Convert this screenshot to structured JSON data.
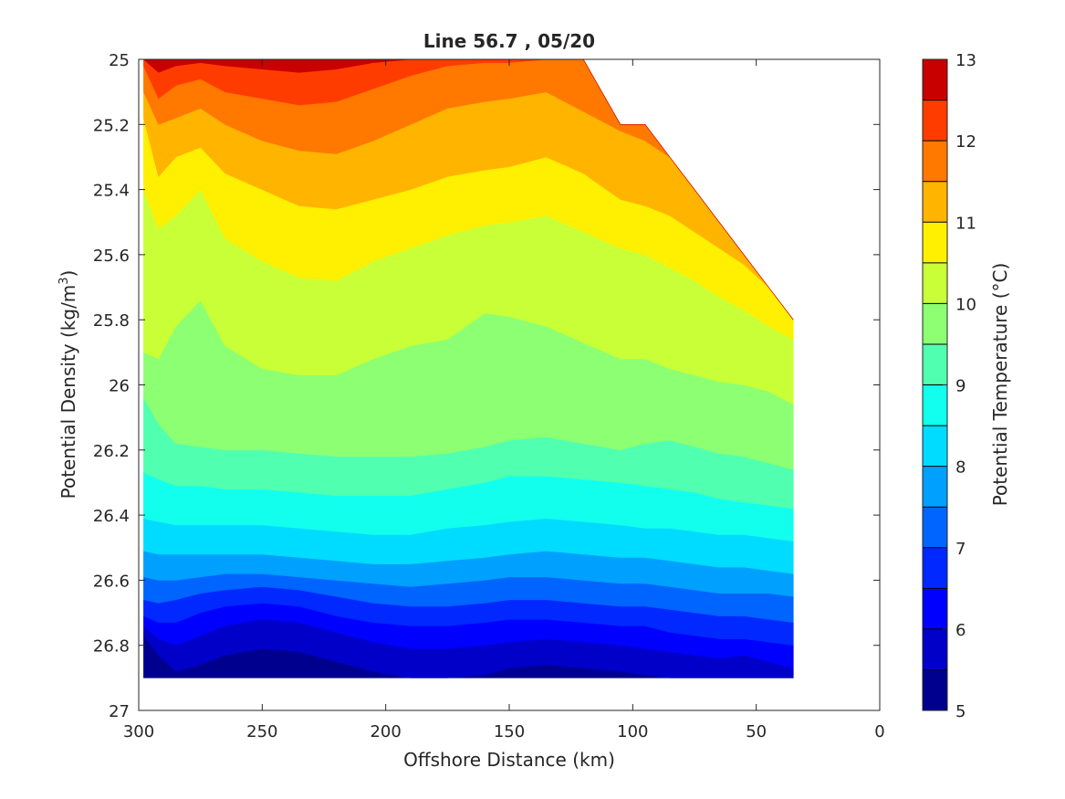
{
  "chart_data": {
    "type": "heatmap",
    "title": "Line 56.7 , 05/20",
    "xlabel": "Offshore Distance (km)",
    "ylabel": "Potential Density (kg/m",
    "ylabel_sup": "3",
    "ylabel_close": ")",
    "colorbar_label": "Potential Temperature (°C)",
    "xlim": [
      300,
      0
    ],
    "x_reversed": true,
    "ylim": [
      25,
      27
    ],
    "y_reversed": true,
    "x_ticks": [
      300,
      250,
      200,
      150,
      100,
      50,
      0
    ],
    "x_tick_labels": [
      "300",
      "250",
      "200",
      "150",
      "100",
      "50",
      "0"
    ],
    "y_ticks": [
      25,
      25.2,
      25.4,
      25.6,
      25.8,
      26,
      26.2,
      26.4,
      26.6,
      26.8,
      27
    ],
    "y_tick_labels": [
      "25",
      "25.2",
      "25.4",
      "25.6",
      "25.8",
      "26",
      "26.2",
      "26.4",
      "26.6",
      "26.8",
      "27"
    ],
    "colorbar_ticks": [
      5,
      6,
      7,
      8,
      9,
      10,
      11,
      12,
      13
    ],
    "colorbar_tick_labels": [
      "5",
      "6",
      "7",
      "8",
      "9",
      "10",
      "11",
      "12",
      "13"
    ],
    "contour_levels": [
      5,
      5.5,
      6,
      6.5,
      7,
      7.5,
      8,
      8.5,
      9,
      9.5,
      10,
      10.5,
      11,
      11.5,
      12,
      12.5,
      13
    ],
    "colormap": [
      "#00008f",
      "#0000c8",
      "#0000ff",
      "#0028ff",
      "#0064ff",
      "#00a0ff",
      "#00dcff",
      "#12ffed",
      "#50ffaf",
      "#8cff73",
      "#c8ff37",
      "#ffef00",
      "#ffb400",
      "#ff7800",
      "#ff3c00",
      "#c80000"
    ],
    "contour_fill": {
      "x": [
        298,
        292,
        285,
        275,
        265,
        250,
        235,
        220,
        205,
        190,
        175,
        160,
        150,
        135,
        120,
        105,
        95,
        85,
        75,
        65,
        55,
        45,
        35
      ],
      "depth_max": [
        26.9,
        26.9,
        26.9,
        26.9,
        26.9,
        26.9,
        26.9,
        26.9,
        26.9,
        26.9,
        26.9,
        26.9,
        26.9,
        26.9,
        26.9,
        26.9,
        26.9,
        26.9,
        26.9,
        26.9,
        26.9,
        26.9,
        26.9
      ],
      "surface_min": [
        25,
        25,
        25,
        25,
        25,
        25,
        25,
        25,
        25,
        25,
        25,
        25,
        25,
        25,
        25.0,
        25.2,
        25.2,
        25.3,
        25.4,
        25.5,
        25.6,
        25.7,
        25.8
      ],
      "isotherms": [
        {
          "level": 5.5,
          "y": [
            26.77,
            26.83,
            26.88,
            26.86,
            26.83,
            26.81,
            26.82,
            26.85,
            26.88,
            26.9,
            26.9,
            26.89,
            26.87,
            26.86,
            26.87,
            26.88,
            26.89,
            26.9,
            26.9,
            26.9,
            26.9,
            26.9,
            26.9
          ]
        },
        {
          "level": 6.0,
          "y": [
            26.74,
            26.78,
            26.8,
            26.77,
            26.74,
            26.72,
            26.73,
            26.76,
            26.79,
            26.81,
            26.81,
            26.8,
            26.79,
            26.78,
            26.79,
            26.8,
            26.81,
            26.82,
            26.83,
            26.84,
            26.83,
            26.85,
            26.87
          ]
        },
        {
          "level": 6.5,
          "y": [
            26.71,
            26.73,
            26.73,
            26.7,
            26.68,
            26.67,
            26.68,
            26.71,
            26.73,
            26.74,
            26.74,
            26.73,
            26.72,
            26.72,
            26.73,
            26.74,
            26.74,
            26.76,
            26.77,
            26.78,
            26.78,
            26.79,
            26.8
          ]
        },
        {
          "level": 7.0,
          "y": [
            26.66,
            26.67,
            26.66,
            26.64,
            26.63,
            26.62,
            26.63,
            26.65,
            26.67,
            26.68,
            26.68,
            26.67,
            26.66,
            26.66,
            26.67,
            26.68,
            26.68,
            26.69,
            26.7,
            26.71,
            26.71,
            26.72,
            26.73
          ]
        },
        {
          "level": 7.5,
          "y": [
            26.59,
            26.6,
            26.6,
            26.59,
            26.58,
            26.58,
            26.59,
            26.6,
            26.61,
            26.62,
            26.61,
            26.6,
            26.59,
            26.59,
            26.6,
            26.61,
            26.61,
            26.62,
            26.63,
            26.64,
            26.64,
            26.64,
            26.65
          ]
        },
        {
          "level": 8.0,
          "y": [
            26.51,
            26.52,
            26.52,
            26.52,
            26.52,
            26.52,
            26.53,
            26.54,
            26.55,
            26.55,
            26.54,
            26.53,
            26.52,
            26.51,
            26.52,
            26.53,
            26.53,
            26.54,
            26.55,
            26.56,
            26.56,
            26.57,
            26.58
          ]
        },
        {
          "level": 8.5,
          "y": [
            26.41,
            26.42,
            26.43,
            26.43,
            26.43,
            26.43,
            26.44,
            26.45,
            26.46,
            26.46,
            26.44,
            26.43,
            26.42,
            26.41,
            26.42,
            26.43,
            26.44,
            26.44,
            26.45,
            26.46,
            26.46,
            26.47,
            26.48
          ]
        },
        {
          "level": 9.0,
          "y": [
            26.27,
            26.29,
            26.31,
            26.31,
            26.32,
            26.32,
            26.33,
            26.34,
            26.34,
            26.34,
            26.32,
            26.3,
            26.28,
            26.28,
            26.29,
            26.3,
            26.31,
            26.32,
            26.33,
            26.35,
            26.36,
            26.37,
            26.38
          ]
        },
        {
          "level": 9.5,
          "y": [
            26.04,
            26.12,
            26.18,
            26.19,
            26.2,
            26.2,
            26.21,
            26.22,
            26.22,
            26.22,
            26.21,
            26.19,
            26.17,
            26.16,
            26.18,
            26.2,
            26.18,
            26.17,
            26.19,
            26.21,
            26.22,
            26.24,
            26.26
          ]
        },
        {
          "level": 10.0,
          "y": [
            25.9,
            25.92,
            25.82,
            25.74,
            25.88,
            25.95,
            25.97,
            25.97,
            25.92,
            25.88,
            25.86,
            25.78,
            25.79,
            25.82,
            25.87,
            25.92,
            25.92,
            25.95,
            25.97,
            25.99,
            26.0,
            26.02,
            26.06
          ]
        },
        {
          "level": 10.5,
          "y": [
            25.4,
            25.52,
            25.48,
            25.4,
            25.55,
            25.62,
            25.67,
            25.68,
            25.62,
            25.58,
            25.54,
            25.51,
            25.5,
            25.48,
            25.53,
            25.58,
            25.6,
            25.64,
            25.68,
            25.73,
            25.77,
            25.82,
            25.86
          ]
        },
        {
          "level": 11.0,
          "y": [
            25.18,
            25.36,
            25.3,
            25.27,
            25.35,
            25.4,
            25.45,
            25.46,
            25.43,
            25.4,
            25.36,
            25.34,
            25.33,
            25.3,
            25.35,
            25.43,
            25.45,
            25.48,
            25.53,
            25.58,
            25.63,
            25.68,
            25.72
          ]
        },
        {
          "level": 11.5,
          "y": [
            25.1,
            25.2,
            25.18,
            25.15,
            25.2,
            25.25,
            25.28,
            25.29,
            25.25,
            25.2,
            25.15,
            25.13,
            25.12,
            25.1,
            25.16,
            25.22,
            25.25,
            25.28,
            25.33,
            25.38,
            25.43,
            25.5,
            25.56
          ]
        },
        {
          "level": 12.0,
          "y": [
            25.02,
            25.12,
            25.08,
            25.06,
            25.1,
            25.12,
            25.14,
            25.13,
            25.09,
            25.05,
            25.02,
            25.01,
            25.01,
            25.0,
            25.0,
            25.05,
            25.08,
            25.12,
            25.18,
            25.22,
            25.28,
            25.34,
            25.4
          ]
        },
        {
          "level": 12.5,
          "y": [
            25.0,
            25.04,
            25.02,
            25.01,
            25.02,
            25.03,
            25.04,
            25.03,
            25.01,
            25.0,
            25.0,
            25.0,
            25.0,
            25.0,
            25.0,
            25.0,
            25.0,
            25.0,
            25.0,
            25.0,
            25.0,
            25.0,
            25.0
          ]
        }
      ]
    }
  }
}
